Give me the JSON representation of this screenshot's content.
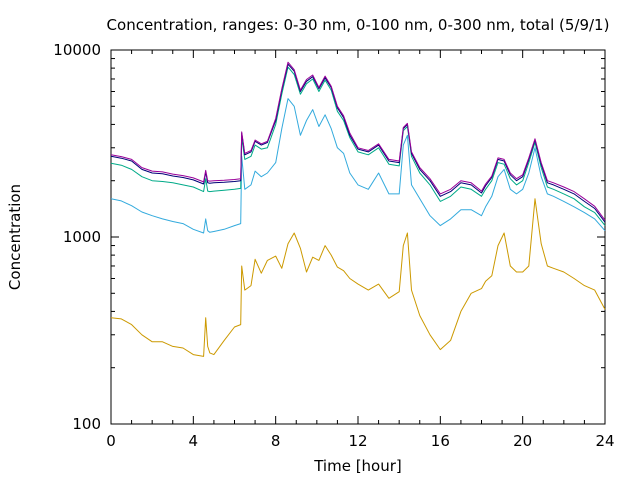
{
  "chart_data": {
    "type": "line",
    "title": "Concentration, ranges: 0-30 nm, 0-100 nm, 0-300 nm, total (5/9/1)",
    "xlabel": "Time [hour]",
    "ylabel": "Concentration",
    "xlim": [
      0,
      24
    ],
    "ylim": [
      100,
      10000
    ],
    "yscale": "log",
    "grid": false,
    "legend": "none",
    "x_ticks": [
      0,
      4,
      8,
      12,
      16,
      20,
      24
    ],
    "y_ticks": [
      100,
      1000,
      10000
    ],
    "series": [
      {
        "color": "#cc9900",
        "x": [
          0,
          0.5,
          1,
          1.5,
          2,
          2.5,
          3,
          3.5,
          4,
          4.5,
          4.6,
          4.7,
          4.8,
          5,
          5.5,
          6,
          6.3,
          6.35,
          6.5,
          6.8,
          7,
          7.3,
          7.6,
          8,
          8.3,
          8.6,
          8.9,
          9.2,
          9.5,
          9.8,
          10.1,
          10.4,
          10.7,
          11,
          11.3,
          11.6,
          12,
          12.5,
          13,
          13.5,
          14,
          14.2,
          14.4,
          14.6,
          15,
          15.5,
          16,
          16.5,
          17,
          17.5,
          18,
          18.2,
          18.5,
          18.8,
          19.1,
          19.4,
          19.7,
          20,
          20.3,
          20.6,
          20.9,
          21.2,
          21.5,
          22,
          22.5,
          23,
          23.5,
          24
        ],
        "y": [
          370,
          365,
          340,
          300,
          275,
          275,
          260,
          255,
          235,
          230,
          370,
          260,
          240,
          235,
          280,
          330,
          340,
          700,
          520,
          550,
          760,
          640,
          750,
          790,
          680,
          920,
          1050,
          870,
          650,
          780,
          750,
          900,
          800,
          690,
          660,
          600,
          560,
          520,
          560,
          470,
          510,
          900,
          1050,
          520,
          380,
          300,
          250,
          280,
          400,
          500,
          530,
          580,
          620,
          900,
          1050,
          700,
          650,
          650,
          700,
          1600,
          920,
          700,
          680,
          650,
          600,
          550,
          520,
          410
        ]
      },
      {
        "color": "#33aadd",
        "x": [
          0,
          0.5,
          1,
          1.5,
          2,
          2.5,
          3,
          3.5,
          4,
          4.5,
          4.6,
          4.7,
          4.8,
          5,
          5.5,
          6,
          6.3,
          6.35,
          6.5,
          6.8,
          7,
          7.3,
          7.6,
          8,
          8.3,
          8.6,
          8.9,
          9.2,
          9.5,
          9.8,
          10.1,
          10.4,
          10.7,
          11,
          11.3,
          11.6,
          12,
          12.5,
          13,
          13.5,
          14,
          14.2,
          14.4,
          14.6,
          15,
          15.5,
          16,
          16.5,
          17,
          17.5,
          18,
          18.2,
          18.5,
          18.8,
          19.1,
          19.4,
          19.7,
          20,
          20.3,
          20.6,
          20.9,
          21.2,
          21.5,
          22,
          22.5,
          23,
          23.5,
          24
        ],
        "y": [
          1600,
          1560,
          1470,
          1360,
          1300,
          1250,
          1210,
          1180,
          1100,
          1050,
          1250,
          1080,
          1060,
          1070,
          1100,
          1150,
          1180,
          2700,
          1800,
          1900,
          2250,
          2100,
          2200,
          2500,
          3800,
          5500,
          5000,
          3500,
          4200,
          4800,
          3900,
          4500,
          3800,
          3000,
          2800,
          2200,
          1900,
          1800,
          2200,
          1700,
          1700,
          3100,
          3500,
          1900,
          1600,
          1300,
          1150,
          1250,
          1400,
          1400,
          1300,
          1450,
          1650,
          2100,
          2300,
          1800,
          1700,
          1800,
          2200,
          3000,
          2100,
          1700,
          1650,
          1550,
          1450,
          1350,
          1250,
          1080
        ]
      },
      {
        "color": "#00aa88",
        "x": [
          0,
          0.5,
          1,
          1.5,
          2,
          2.5,
          3,
          3.5,
          4,
          4.5,
          4.6,
          4.7,
          4.8,
          5,
          5.5,
          6,
          6.3,
          6.35,
          6.5,
          6.8,
          7,
          7.3,
          7.6,
          8,
          8.3,
          8.6,
          8.9,
          9.2,
          9.5,
          9.8,
          10.1,
          10.4,
          10.7,
          11,
          11.3,
          11.6,
          12,
          12.5,
          13,
          13.5,
          14,
          14.2,
          14.4,
          14.6,
          15,
          15.5,
          16,
          16.5,
          17,
          17.5,
          18,
          18.2,
          18.5,
          18.8,
          19.1,
          19.4,
          19.7,
          20,
          20.3,
          20.6,
          20.9,
          21.2,
          21.5,
          22,
          22.5,
          23,
          23.5,
          24
        ],
        "y": [
          2480,
          2420,
          2300,
          2100,
          2000,
          1980,
          1950,
          1900,
          1850,
          1750,
          2050,
          1760,
          1750,
          1760,
          1780,
          1800,
          1820,
          3400,
          2600,
          2700,
          3100,
          2950,
          3000,
          4000,
          5800,
          8100,
          7400,
          5800,
          6600,
          7000,
          6000,
          6900,
          6100,
          4700,
          4200,
          3400,
          2850,
          2750,
          3000,
          2450,
          2400,
          3700,
          3900,
          2700,
          2200,
          1900,
          1550,
          1650,
          1850,
          1800,
          1650,
          1800,
          2000,
          2500,
          2450,
          2050,
          1900,
          2000,
          2500,
          3200,
          2350,
          1850,
          1800,
          1700,
          1600,
          1450,
          1350,
          1150
        ]
      },
      {
        "color": "#000077",
        "x": [
          0,
          0.5,
          1,
          1.5,
          2,
          2.5,
          3,
          3.5,
          4,
          4.5,
          4.6,
          4.7,
          4.8,
          5,
          5.5,
          6,
          6.3,
          6.35,
          6.5,
          6.8,
          7,
          7.3,
          7.6,
          8,
          8.3,
          8.6,
          8.9,
          9.2,
          9.5,
          9.8,
          10.1,
          10.4,
          10.7,
          11,
          11.3,
          11.6,
          12,
          12.5,
          13,
          13.5,
          14,
          14.2,
          14.4,
          14.6,
          15,
          15.5,
          16,
          16.5,
          17,
          17.5,
          18,
          18.2,
          18.5,
          18.8,
          19.1,
          19.4,
          19.7,
          20,
          20.3,
          20.6,
          20.9,
          21.2,
          21.5,
          22,
          22.5,
          23,
          23.5,
          24
        ],
        "y": [
          2700,
          2640,
          2550,
          2300,
          2200,
          2180,
          2120,
          2080,
          2020,
          1920,
          2220,
          1950,
          1940,
          1950,
          1960,
          1980,
          2000,
          3600,
          2750,
          2850,
          3250,
          3100,
          3200,
          4200,
          6100,
          8400,
          7700,
          6000,
          6800,
          7200,
          6200,
          7100,
          6300,
          4900,
          4350,
          3500,
          2950,
          2850,
          3100,
          2550,
          2500,
          3800,
          4000,
          2800,
          2300,
          2000,
          1650,
          1750,
          1950,
          1900,
          1720,
          1880,
          2080,
          2600,
          2550,
          2150,
          2000,
          2100,
          2600,
          3300,
          2450,
          1950,
          1900,
          1800,
          1700,
          1550,
          1420,
          1200
        ]
      },
      {
        "color": "#990099",
        "x": [
          0,
          0.5,
          1,
          1.5,
          2,
          2.5,
          3,
          3.5,
          4,
          4.5,
          4.6,
          4.7,
          4.8,
          5,
          5.5,
          6,
          6.3,
          6.35,
          6.5,
          6.8,
          7,
          7.3,
          7.6,
          8,
          8.3,
          8.6,
          8.9,
          9.2,
          9.5,
          9.8,
          10.1,
          10.4,
          10.7,
          11,
          11.3,
          11.6,
          12,
          12.5,
          13,
          13.5,
          14,
          14.2,
          14.4,
          14.6,
          15,
          15.5,
          16,
          16.5,
          17,
          17.5,
          18,
          18.2,
          18.5,
          18.8,
          19.1,
          19.4,
          19.7,
          20,
          20.3,
          20.6,
          20.9,
          21.2,
          21.5,
          22,
          22.5,
          23,
          23.5,
          24
        ],
        "y": [
          2750,
          2690,
          2600,
          2350,
          2250,
          2230,
          2170,
          2130,
          2070,
          1970,
          2270,
          2000,
          1990,
          2000,
          2010,
          2030,
          2050,
          3650,
          2800,
          2900,
          3300,
          3150,
          3250,
          4300,
          6200,
          8600,
          7850,
          6100,
          6950,
          7350,
          6300,
          7250,
          6400,
          5000,
          4450,
          3600,
          3000,
          2900,
          3150,
          2600,
          2550,
          3850,
          4050,
          2850,
          2350,
          2050,
          1700,
          1800,
          2000,
          1950,
          1760,
          1920,
          2120,
          2650,
          2600,
          2200,
          2050,
          2150,
          2650,
          3350,
          2500,
          2000,
          1950,
          1850,
          1750,
          1600,
          1460,
          1230
        ]
      }
    ]
  }
}
